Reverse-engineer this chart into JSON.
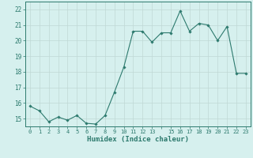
{
  "x": [
    0,
    1,
    2,
    3,
    4,
    5,
    6,
    7,
    8,
    9,
    10,
    11,
    12,
    13,
    14,
    15,
    16,
    17,
    18,
    19,
    20,
    21,
    22,
    23
  ],
  "y": [
    15.8,
    15.5,
    14.8,
    15.1,
    14.9,
    15.2,
    14.7,
    14.65,
    15.2,
    16.7,
    18.3,
    20.6,
    20.6,
    19.9,
    20.5,
    20.5,
    21.9,
    20.6,
    21.1,
    21.0,
    20.0,
    20.9,
    17.9,
    17.9
  ],
  "line_color": "#2d7a6e",
  "marker": "D",
  "marker_size": 1.8,
  "bg_color": "#d6f0ee",
  "grid_color": "#c0d8d5",
  "tick_color": "#2d7a6e",
  "label_color": "#2d7a6e",
  "xlabel": "Humidex (Indice chaleur)",
  "ylim": [
    14.5,
    22.5
  ],
  "xlim": [
    -0.5,
    23.5
  ],
  "yticks": [
    15,
    16,
    17,
    18,
    19,
    20,
    21,
    22
  ],
  "xticks": [
    0,
    1,
    2,
    3,
    4,
    5,
    6,
    7,
    8,
    9,
    10,
    11,
    12,
    13,
    14,
    15,
    16,
    17,
    18,
    19,
    20,
    21,
    22,
    23
  ],
  "xtick_labels": [
    "0",
    "1",
    "2",
    "3",
    "4",
    "5",
    "6",
    "7",
    "8",
    "9",
    "10",
    "11",
    "12",
    "13",
    "",
    "15",
    "16",
    "17",
    "18",
    "19",
    "20",
    "21",
    "22",
    "23"
  ]
}
